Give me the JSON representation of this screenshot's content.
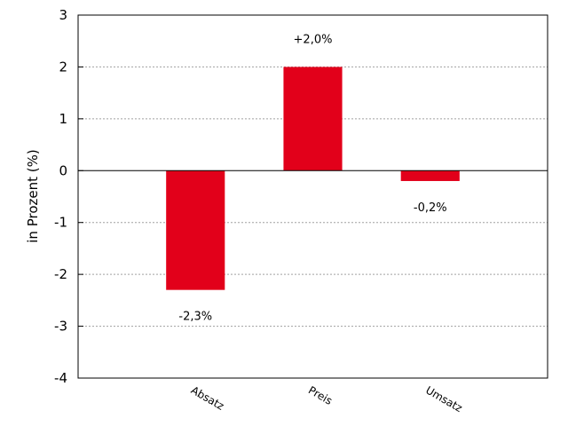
{
  "chart_data": {
    "type": "bar",
    "title": "",
    "xlabel": "",
    "ylabel": "in Prozent (%)",
    "categories": [
      "Absatz",
      "Preis",
      "Umsatz"
    ],
    "values": [
      -2.3,
      2.0,
      -0.2
    ],
    "data_labels": [
      "-2,3%",
      "+2,0%",
      "-0,2%"
    ],
    "ylim": [
      -4,
      3
    ],
    "yticks": [
      3,
      2,
      1,
      0,
      -1,
      -2,
      -3,
      -4
    ],
    "ytick_labels": [
      "3",
      "2",
      "1",
      "0",
      "-1",
      "-2",
      "-3",
      "-4"
    ],
    "grid": true,
    "bar_color": "#e2001a",
    "legend": "none"
  }
}
